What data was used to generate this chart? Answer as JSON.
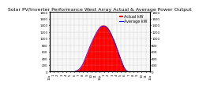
{
  "title": "Solar PV/Inverter Performance West Array Actual & Average Power Output",
  "title_fontsize": 4.5,
  "bg_color": "#ffffff",
  "plot_bg": "#f8f8f8",
  "fill_color": "#ff0000",
  "line_color": "#0000ff",
  "legend_actual": "Actual kW",
  "legend_avg": "Average kW",
  "legend_fontsize": 3.5,
  "xlabel_fontsize": 3.0,
  "ylabel_fontsize": 3.0,
  "tick_fontsize": 2.8,
  "n_points": 96,
  "x_labels": [
    "12a",
    "1",
    "2",
    "3",
    "4",
    "5",
    "6",
    "7",
    "8",
    "9",
    "10",
    "11",
    "12p",
    "1",
    "2",
    "3",
    "4",
    "5",
    "6",
    "7",
    "8",
    "9",
    "10",
    "11",
    "12a"
  ],
  "ylim": [
    0,
    1800
  ],
  "y_ticks": [
    0,
    200,
    400,
    600,
    800,
    1000,
    1200,
    1400,
    1600,
    1800
  ],
  "actual_values": [
    0,
    0,
    0,
    0,
    0,
    0,
    0,
    0,
    0,
    0,
    0,
    0,
    0,
    0,
    0,
    0,
    0,
    0,
    0,
    0,
    0,
    0,
    0,
    0,
    5,
    15,
    30,
    50,
    70,
    100,
    140,
    190,
    250,
    320,
    400,
    480,
    560,
    640,
    720,
    800,
    870,
    940,
    1010,
    1080,
    1140,
    1200,
    1250,
    1300,
    1340,
    1370,
    1390,
    1400,
    1400,
    1390,
    1370,
    1350,
    1310,
    1260,
    1200,
    1140,
    1070,
    1000,
    920,
    840,
    750,
    660,
    570,
    480,
    390,
    300,
    220,
    150,
    90,
    50,
    20,
    5,
    0,
    0,
    0,
    0,
    0,
    0,
    0,
    0,
    0,
    0,
    0,
    0,
    0,
    0,
    0,
    0,
    0,
    0,
    0,
    0
  ],
  "avg_values": [
    0,
    0,
    0,
    0,
    0,
    0,
    0,
    0,
    0,
    0,
    0,
    0,
    0,
    0,
    0,
    0,
    0,
    0,
    0,
    0,
    0,
    0,
    0,
    0,
    3,
    12,
    25,
    45,
    65,
    95,
    130,
    175,
    235,
    305,
    380,
    460,
    540,
    620,
    700,
    780,
    850,
    920,
    990,
    1060,
    1120,
    1180,
    1230,
    1280,
    1320,
    1350,
    1370,
    1380,
    1380,
    1370,
    1350,
    1325,
    1290,
    1240,
    1180,
    1120,
    1050,
    980,
    900,
    820,
    730,
    640,
    550,
    460,
    375,
    290,
    210,
    140,
    85,
    45,
    18,
    4,
    0,
    0,
    0,
    0,
    0,
    0,
    0,
    0,
    0,
    0,
    0,
    0,
    0,
    0,
    0,
    0,
    0,
    0,
    0,
    0
  ]
}
